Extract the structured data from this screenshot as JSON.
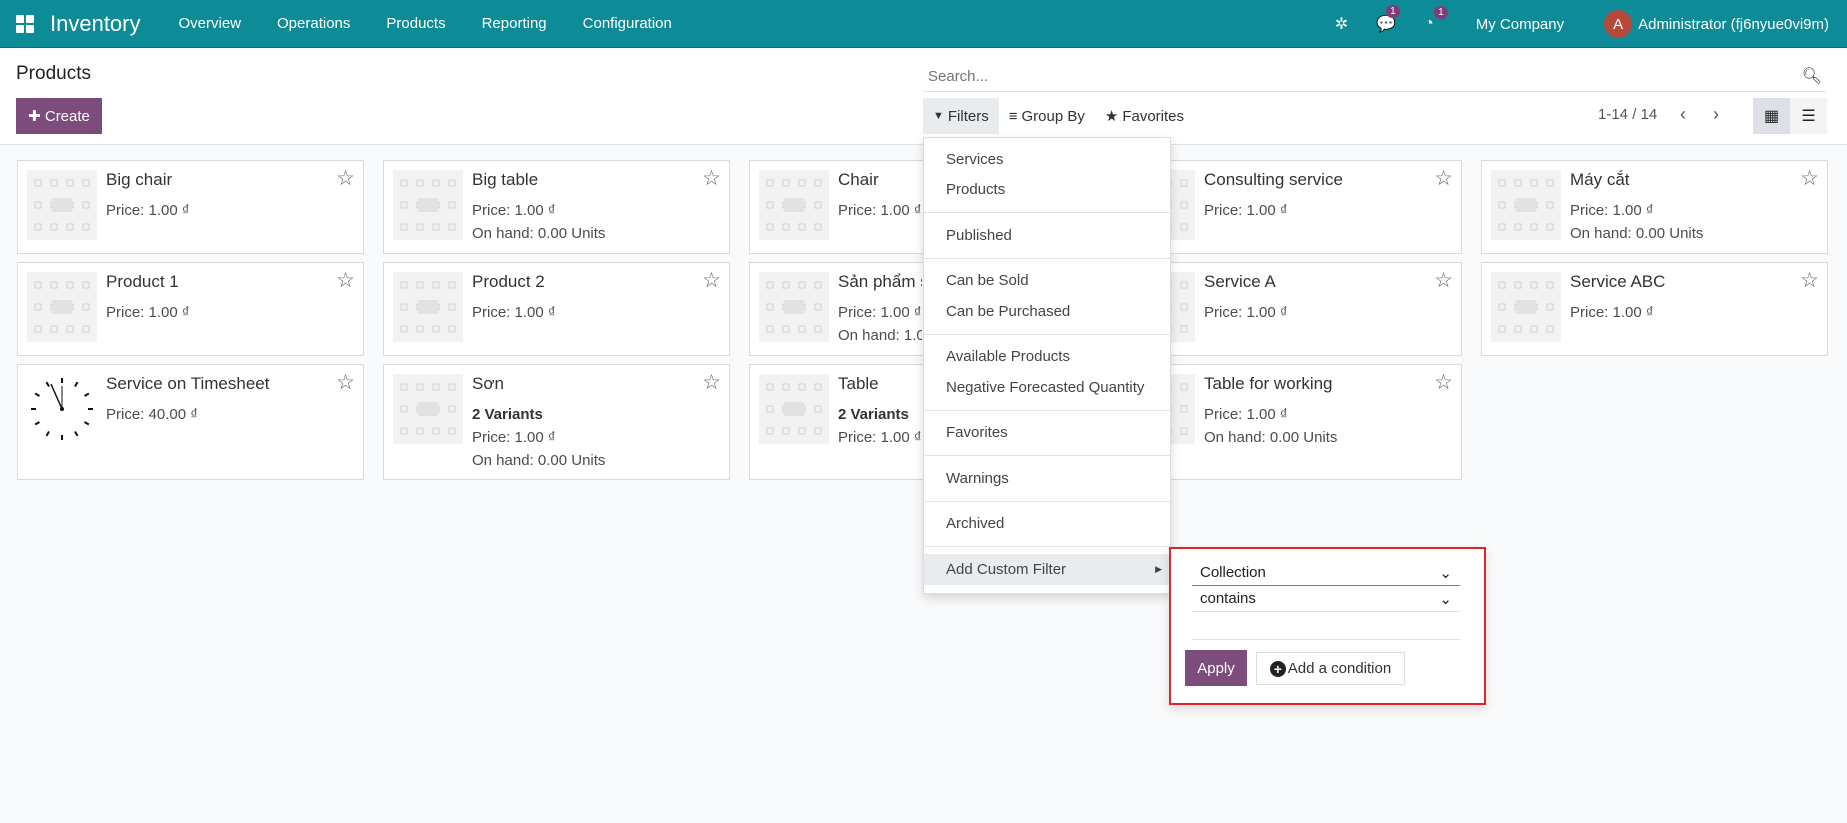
{
  "navbar": {
    "app": "Inventory",
    "menu": [
      "Overview",
      "Operations",
      "Products",
      "Reporting",
      "Configuration"
    ],
    "messages_count": "1",
    "activities_count": "1",
    "company": "My Company",
    "avatar_letter": "A",
    "user": "Administrator (fj6nyue0vi9m)",
    "color": "#0d8b96"
  },
  "control_panel": {
    "title": "Products",
    "create_label": "Create",
    "search_placeholder": "Search...",
    "filters_label": "Filters",
    "groupby_label": "Group By",
    "favorites_label": "Favorites",
    "pager": "1-14 / 14"
  },
  "products": [
    {
      "name": "Big chair",
      "lines": [
        "Price: 1.00 ₫"
      ]
    },
    {
      "name": "Big table",
      "lines": [
        "Price: 1.00 ₫",
        "On hand: 0.00 Units"
      ]
    },
    {
      "name": "Chair",
      "lines": [
        "Price: 1.00 ₫"
      ]
    },
    {
      "name": "Consulting service",
      "lines": [
        "Price: 1.00 ₫"
      ]
    },
    {
      "name": "Máy cắt",
      "lines": [
        "Price: 1.00 ₫",
        "On hand: 0.00 Units"
      ]
    },
    {
      "name": "Product 1",
      "lines": [
        "Price: 1.00 ₫"
      ]
    },
    {
      "name": "Product 2",
      "lines": [
        "Price: 1.00 ₫"
      ]
    },
    {
      "name": "Sản phẩm s",
      "lines": [
        "Price: 1.00 ₫",
        "On hand: 1.0"
      ]
    },
    {
      "name": "Service A",
      "lines": [
        "Price: 1.00 ₫"
      ]
    },
    {
      "name": "Service ABC",
      "lines": [
        "Price: 1.00 ₫"
      ]
    },
    {
      "name": "Service on Timesheet",
      "lines": [
        "Price: 40.00 ₫"
      ],
      "clock": true
    },
    {
      "name": "Sơn",
      "variants": "2 Variants",
      "lines": [
        "Price: 1.00 ₫",
        "On hand: 0.00 Units"
      ]
    },
    {
      "name": "Table",
      "variants": "2 Variants",
      "lines": [
        "Price: 1.00 ₫"
      ]
    },
    {
      "name": "Table for working",
      "lines": [
        "Price: 1.00 ₫",
        "On hand: 0.00 Units"
      ]
    }
  ],
  "filters_menu": {
    "groups": [
      [
        "Services",
        "Products"
      ],
      [
        "Published"
      ],
      [
        "Can be Sold",
        "Can be Purchased"
      ],
      [
        "Available Products",
        "Negative Forecasted Quantity"
      ],
      [
        "Favorites"
      ],
      [
        "Warnings"
      ],
      [
        "Archived"
      ]
    ],
    "custom_filter": "Add Custom Filter"
  },
  "custom_filter": {
    "field": "Collection",
    "operator": "contains",
    "apply_label": "Apply",
    "add_condition_label": "Add a condition",
    "highlight_color": "#e0242b"
  }
}
